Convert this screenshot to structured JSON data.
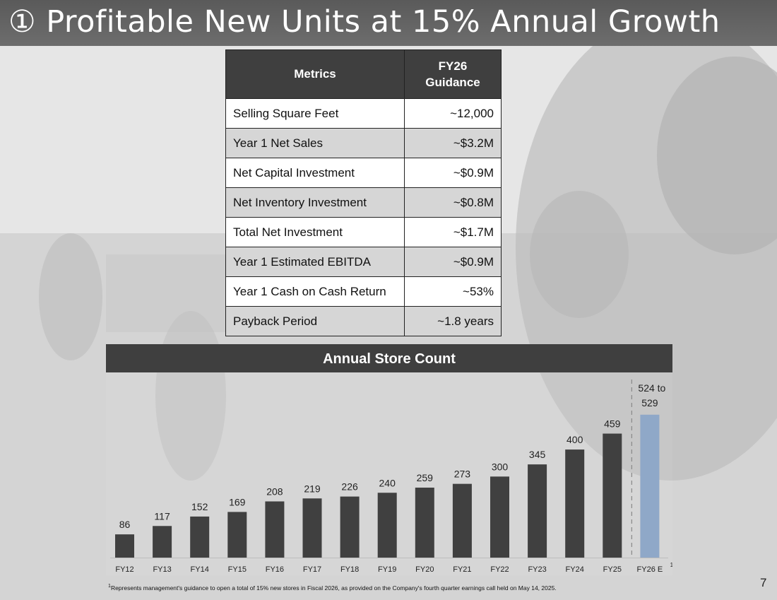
{
  "title": "① Profitable New Units at 15% Annual Growth",
  "metrics_table": {
    "header_metric": "Metrics",
    "header_guidance_line1": "FY26",
    "header_guidance_line2": "Guidance",
    "rows": [
      {
        "label": "Selling Square Feet",
        "value": "~12,000"
      },
      {
        "label": "Year 1 Net Sales",
        "value": "~$3.2M"
      },
      {
        "label": "Net Capital Investment",
        "value": "~$0.9M"
      },
      {
        "label": "Net Inventory Investment",
        "value": "~$0.8M"
      },
      {
        "label": "Total Net Investment",
        "value": "~$1.7M"
      },
      {
        "label": "Year 1 Estimated EBITDA",
        "value": "~$0.9M"
      },
      {
        "label": "Year 1 Cash on Cash Return",
        "value": "~53%"
      },
      {
        "label": "Payback Period",
        "value": "~1.8 years"
      }
    ]
  },
  "chart_data": {
    "type": "bar",
    "title": "Annual Store Count",
    "categories": [
      "FY12",
      "FY13",
      "FY14",
      "FY15",
      "FY16",
      "FY17",
      "FY18",
      "FY19",
      "FY20",
      "FY21",
      "FY22",
      "FY23",
      "FY24",
      "FY25",
      "FY26 E"
    ],
    "values": [
      86,
      117,
      152,
      169,
      208,
      219,
      226,
      240,
      259,
      273,
      300,
      345,
      400,
      459,
      529
    ],
    "labels": [
      "86",
      "117",
      "152",
      "169",
      "208",
      "219",
      "226",
      "240",
      "259",
      "273",
      "300",
      "345",
      "400",
      "459",
      "524 to 529"
    ],
    "estimate_label_line1": "524 to",
    "estimate_label_line2": "529",
    "estimate_footnote_marker": "1",
    "ylim": [
      0,
      620
    ],
    "colors": {
      "actual": "#404040",
      "estimate": "#8fa8c8"
    }
  },
  "footnote_marker": "1",
  "footnote": "Represents management's guidance to open a total of 15% new stores in Fiscal 2026, as provided on the Company's fourth quarter earnings call held on May 14, 2025.",
  "page_number": "7"
}
